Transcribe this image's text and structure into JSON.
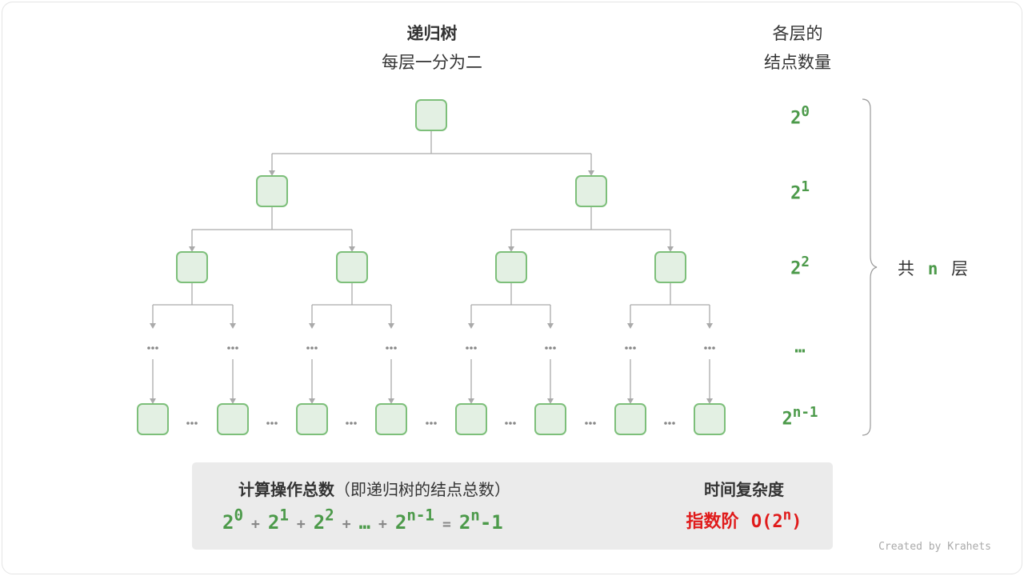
{
  "title": "递归树",
  "subtitle": "每层一分为二",
  "right_header": [
    "各层的",
    "结点数量"
  ],
  "level_counts": [
    {
      "base": "2",
      "exp": "0"
    },
    {
      "base": "2",
      "exp": "1"
    },
    {
      "base": "2",
      "exp": "2"
    },
    {
      "base": "…",
      "exp": ""
    },
    {
      "base": "2",
      "exp": "n-1"
    }
  ],
  "brace_label": {
    "pre": "共",
    "n": "n",
    "post": "层"
  },
  "ellipsis": "…",
  "summary": {
    "heading": "计算操作总数",
    "heading_paren": "（即递归树的结点总数）",
    "terms": [
      {
        "base": "2",
        "exp": "0"
      },
      {
        "base": "2",
        "exp": "1"
      },
      {
        "base": "2",
        "exp": "2"
      },
      {
        "base": "…",
        "exp": ""
      },
      {
        "base": "2",
        "exp": "n-1"
      }
    ],
    "plus": "+",
    "equals": "=",
    "result": {
      "base": "2",
      "exp": "n",
      "tail": "-1"
    },
    "complexity_heading": "时间复杂度",
    "complexity_name": "指数阶",
    "complexity_value": {
      "pre": "O(2",
      "exp": "n",
      "post": ")"
    }
  },
  "credit": "Created by Krahets",
  "colors": {
    "node_fill": "#e3f0e3",
    "node_stroke": "#7dbf7a",
    "count_green": "#4c9a4a",
    "complexity_red": "#e01b1b",
    "edge": "#aaaaaa"
  }
}
